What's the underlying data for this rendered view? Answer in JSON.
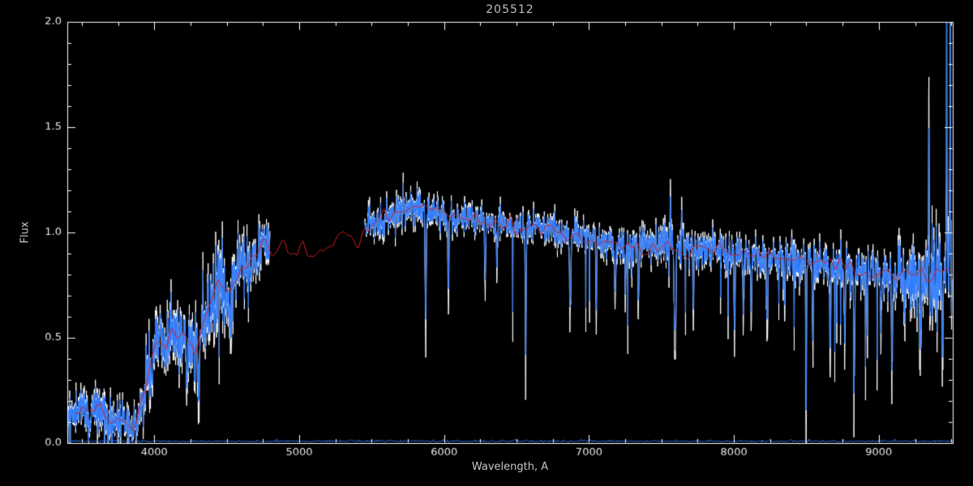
{
  "chart_data": {
    "type": "line",
    "title": "205512",
    "xlabel": "Wavelength, A",
    "ylabel": "Flux",
    "xlim": [
      3400,
      9510
    ],
    "ylim": [
      0.0,
      2.0
    ],
    "xticks": [
      4000,
      5000,
      6000,
      7000,
      8000,
      9000
    ],
    "xtick_labels": [
      "4000",
      "5000",
      "6000",
      "7000",
      "8000",
      "9000"
    ],
    "yticks": [
      0.0,
      0.5,
      1.0,
      1.5,
      2.0
    ],
    "ytick_labels": [
      "0.0",
      "0.5",
      "1.0",
      "1.5",
      "2.0"
    ],
    "x_minor_step": 250,
    "y_minor_step": 0.1,
    "grid": false,
    "colors": {
      "background": "#000000",
      "axis": "#ffffff",
      "tick_text": "#e6e6e6",
      "label_text": "#c8c8c8",
      "title_text": "#bdbdbd"
    },
    "sample_step": 2,
    "spike_prob": 0.012,
    "spike_depth": [
      0.1,
      0.45
    ],
    "template_knot_step": 35,
    "template_wiggle": 0.022,
    "template_range": [
      3450,
      9505
    ],
    "segments": [
      [
        3400,
        4800
      ],
      [
        5450,
        9505
      ]
    ],
    "continuum": [
      [
        3400,
        0.1
      ],
      [
        3450,
        0.13
      ],
      [
        3500,
        0.16
      ],
      [
        3550,
        0.1
      ],
      [
        3600,
        0.18
      ],
      [
        3650,
        0.14
      ],
      [
        3700,
        0.08
      ],
      [
        3750,
        0.12
      ],
      [
        3800,
        0.1
      ],
      [
        3850,
        0.06
      ],
      [
        3880,
        0.1
      ],
      [
        3920,
        0.22
      ],
      [
        3960,
        0.36
      ],
      [
        4000,
        0.46
      ],
      [
        4040,
        0.5
      ],
      [
        4080,
        0.44
      ],
      [
        4120,
        0.56
      ],
      [
        4160,
        0.5
      ],
      [
        4200,
        0.53
      ],
      [
        4240,
        0.47
      ],
      [
        4280,
        0.44
      ],
      [
        4320,
        0.54
      ],
      [
        4360,
        0.62
      ],
      [
        4400,
        0.7
      ],
      [
        4440,
        0.78
      ],
      [
        4480,
        0.74
      ],
      [
        4520,
        0.7
      ],
      [
        4560,
        0.78
      ],
      [
        4600,
        0.85
      ],
      [
        4640,
        0.82
      ],
      [
        4680,
        0.88
      ],
      [
        4720,
        0.92
      ],
      [
        4760,
        0.96
      ],
      [
        4800,
        0.93
      ],
      [
        4850,
        0.9
      ],
      [
        4900,
        0.94
      ],
      [
        4950,
        0.88
      ],
      [
        5000,
        0.93
      ],
      [
        5050,
        0.9
      ],
      [
        5100,
        0.87
      ],
      [
        5150,
        0.92
      ],
      [
        5200,
        0.9
      ],
      [
        5250,
        0.94
      ],
      [
        5300,
        0.97
      ],
      [
        5350,
        1.0
      ],
      [
        5400,
        0.96
      ],
      [
        5450,
        1.01
      ],
      [
        5500,
        1.04
      ],
      [
        5600,
        1.07
      ],
      [
        5700,
        1.1
      ],
      [
        5800,
        1.12
      ],
      [
        5900,
        1.1
      ],
      [
        6000,
        1.08
      ],
      [
        6100,
        1.07
      ],
      [
        6200,
        1.06
      ],
      [
        6300,
        1.05
      ],
      [
        6400,
        1.04
      ],
      [
        6500,
        1.03
      ],
      [
        6600,
        1.02
      ],
      [
        6700,
        1.02
      ],
      [
        6800,
        1.0
      ],
      [
        6900,
        0.98
      ],
      [
        7000,
        0.97
      ],
      [
        7100,
        0.96
      ],
      [
        7200,
        0.95
      ],
      [
        7300,
        0.94
      ],
      [
        7400,
        0.93
      ],
      [
        7500,
        0.95
      ],
      [
        7600,
        0.93
      ],
      [
        7700,
        0.92
      ],
      [
        7800,
        0.91
      ],
      [
        7900,
        0.92
      ],
      [
        8000,
        0.9
      ],
      [
        8100,
        0.89
      ],
      [
        8200,
        0.88
      ],
      [
        8300,
        0.89
      ],
      [
        8400,
        0.87
      ],
      [
        8500,
        0.86
      ],
      [
        8600,
        0.85
      ],
      [
        8700,
        0.84
      ],
      [
        8800,
        0.83
      ],
      [
        8900,
        0.82
      ],
      [
        9000,
        0.81
      ],
      [
        9100,
        0.8
      ],
      [
        9200,
        0.8
      ],
      [
        9300,
        0.8
      ],
      [
        9400,
        0.8
      ],
      [
        9505,
        0.8
      ]
    ],
    "noise_profile": [
      [
        3400,
        0.045
      ],
      [
        3700,
        0.05
      ],
      [
        3900,
        0.05
      ],
      [
        4000,
        0.07
      ],
      [
        4300,
        0.08
      ],
      [
        4600,
        0.08
      ],
      [
        4800,
        0.06
      ],
      [
        5450,
        0.04
      ],
      [
        5800,
        0.038
      ],
      [
        6500,
        0.035
      ],
      [
        7000,
        0.035
      ],
      [
        7500,
        0.045
      ],
      [
        7700,
        0.04
      ],
      [
        8000,
        0.038
      ],
      [
        8400,
        0.04
      ],
      [
        8700,
        0.045
      ],
      [
        9000,
        0.05
      ],
      [
        9200,
        0.07
      ],
      [
        9350,
        0.1
      ],
      [
        9440,
        0.13
      ],
      [
        9505,
        0.16
      ]
    ],
    "features": [
      [
        3934,
        0.06,
        6
      ],
      [
        3969,
        0.06,
        6
      ],
      [
        4227,
        0.18,
        8
      ],
      [
        4305,
        0.22,
        14
      ],
      [
        4383,
        0.14,
        7
      ],
      [
        4530,
        0.15,
        9
      ],
      [
        4668,
        0.12,
        8
      ],
      [
        5873,
        0.5,
        7
      ],
      [
        6030,
        0.35,
        6
      ],
      [
        6283,
        0.3,
        6
      ],
      [
        6365,
        0.2,
        6
      ],
      [
        6563,
        0.62,
        5
      ],
      [
        6870,
        0.28,
        9
      ],
      [
        7050,
        0.3,
        6
      ],
      [
        7180,
        0.22,
        8
      ],
      [
        7250,
        0.18,
        6
      ],
      [
        7340,
        0.28,
        6
      ],
      [
        7562,
        -0.22,
        4
      ],
      [
        7594,
        0.45,
        10
      ],
      [
        7640,
        -0.18,
        4
      ],
      [
        7720,
        0.25,
        7
      ],
      [
        8005,
        0.32,
        7
      ],
      [
        8065,
        0.28,
        6
      ],
      [
        8120,
        0.3,
        6
      ],
      [
        8230,
        0.28,
        7
      ],
      [
        8350,
        0.22,
        6
      ],
      [
        8498,
        0.7,
        5
      ],
      [
        8545,
        0.38,
        6
      ],
      [
        8665,
        0.42,
        6
      ],
      [
        8765,
        0.35,
        6
      ],
      [
        8830,
        0.4,
        7
      ],
      [
        8920,
        0.28,
        6
      ],
      [
        9015,
        0.3,
        6
      ],
      [
        9090,
        0.28,
        7
      ],
      [
        9180,
        0.24,
        6
      ],
      [
        9290,
        0.35,
        5
      ],
      [
        9345,
        -0.72,
        4
      ],
      [
        9440,
        0.45,
        4
      ],
      [
        9468,
        -1.25,
        3
      ],
      [
        9492,
        -1.3,
        3
      ]
    ],
    "series": [
      {
        "name": "observed-unsmoothed",
        "color": "#ffffff",
        "role": "observed",
        "noise_scale": 1.35,
        "seed": 205512
      },
      {
        "name": "observed-smoothed",
        "color": "#2e7bff",
        "role": "observed",
        "noise_scale": 1.0,
        "seed": 205512
      },
      {
        "name": "error-floor",
        "color": "#2e7bff",
        "role": "floor",
        "level": 0.006,
        "seed": 17
      },
      {
        "name": "template-fit",
        "color": "#d42020",
        "role": "template",
        "seed": 99
      }
    ]
  }
}
